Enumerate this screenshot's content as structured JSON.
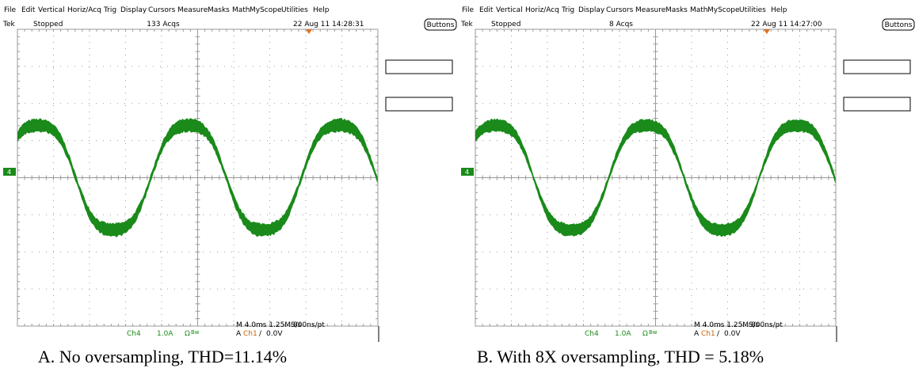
{
  "panels": [
    {
      "menu": [
        "File",
        "Edit",
        "Vertical",
        "Horiz/Acq",
        "Trig",
        "Display",
        "Cursors",
        "Measure",
        "Masks",
        "Math",
        "MyScope",
        "Utilities",
        "Help"
      ],
      "status": {
        "brand": "Tek",
        "state": "Stopped",
        "acquisitions": "133 Acqs",
        "timestamp": "22 Aug 11 14:28:31"
      },
      "buttons": "Buttons",
      "channel_marker": "4",
      "readout": {
        "channel": "Ch4",
        "scale": "1.0A",
        "coupling": "Ω",
        "bandwidth": "Bw",
        "timebase": "M 4.0ms 1.25MS/s",
        "resolution": "800ns/pt",
        "trigger_mode": "A",
        "trigger_source": "Ch1",
        "trigger_slope": "∕",
        "trigger_level": "0.0V"
      },
      "caption": "A. No oversampling, THD=11.14%"
    },
    {
      "menu": [
        "File",
        "Edit",
        "Vertical",
        "Horiz/Acq",
        "Trig",
        "Display",
        "Cursors",
        "Measure",
        "Masks",
        "Math",
        "MyScope",
        "Utilities",
        "Help"
      ],
      "status": {
        "brand": "Tek",
        "state": "Stopped",
        "acquisitions": "8 Acqs",
        "timestamp": "22 Aug 11 14:27:00"
      },
      "buttons": "Buttons",
      "channel_marker": "4",
      "readout": {
        "channel": "Ch4",
        "scale": "1.0A",
        "coupling": "Ω",
        "bandwidth": "Bw",
        "timebase": "M 4.0ms 1.25MS/s",
        "resolution": "800ns/pt",
        "trigger_mode": "A",
        "trigger_source": "Ch1",
        "trigger_slope": "∕",
        "trigger_level": "0.0V"
      },
      "caption": "B. With 8X oversampling, THD = 5.18%"
    }
  ]
}
